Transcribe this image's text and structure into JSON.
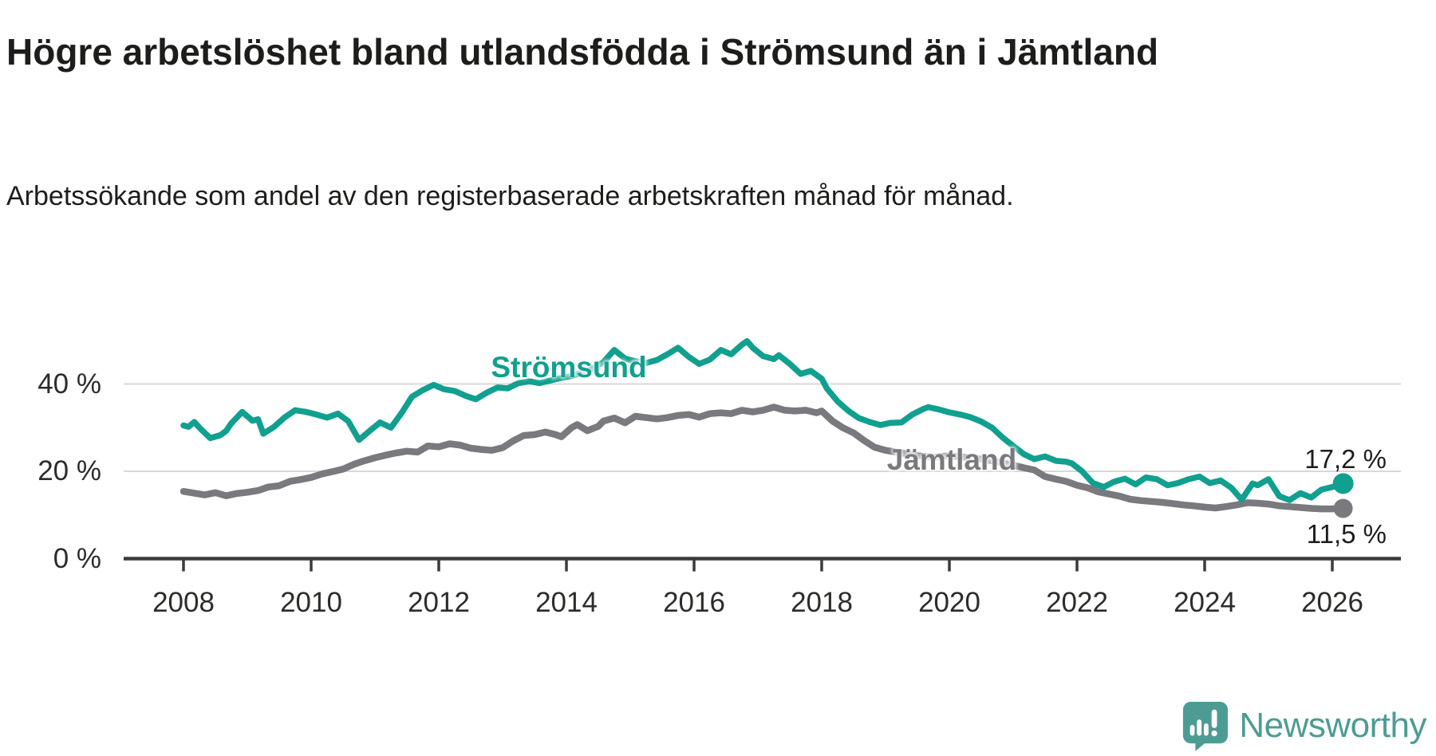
{
  "title": "Högre arbetslöshet bland utlandsfödda i Strömsund än i Jämtland",
  "subtitle": "Arbetssökande som andel av den registerbaserade arbetskraften månad för månad.",
  "branding": {
    "logo_text": "Newsworthy",
    "logo_color": "#4d9c93"
  },
  "colors": {
    "stromsund_line": "#11a08f",
    "jamtland_line": "#7a797e",
    "text": "#1d1d1b",
    "tick_text": "#2c2c2a",
    "gridline": "#d8d8d6",
    "axis": "#3b3b39"
  },
  "chart_data": {
    "type": "line",
    "title": "Högre arbetslöshet bland utlandsfödda i Strömsund än i Jämtland",
    "subtitle": "Arbetssökande som andel av den registerbaserade arbetskraften månad för månad.",
    "unit": "%",
    "xlabel": "",
    "ylabel": "",
    "x_range": [
      2008.0,
      2026.2
    ],
    "y_range": [
      0,
      52
    ],
    "grid": "horizontal",
    "legend_position": "inline-labels",
    "x_ticks": [
      2008,
      2010,
      2012,
      2014,
      2016,
      2018,
      2020,
      2022,
      2024,
      2026
    ],
    "y_ticks": [
      {
        "value": 0,
        "label": "0 %"
      },
      {
        "value": 20,
        "label": "20 %"
      },
      {
        "value": 40,
        "label": "40 %"
      }
    ],
    "series": [
      {
        "name": "Strömsund",
        "color": "#11a08f",
        "end_value": 17.2,
        "end_label": "17,2 %",
        "points": [
          [
            2008.0,
            30.5
          ],
          [
            2008.08,
            30.2
          ],
          [
            2008.17,
            31.3
          ],
          [
            2008.25,
            30.0
          ],
          [
            2008.42,
            27.6
          ],
          [
            2008.58,
            28.3
          ],
          [
            2008.67,
            29.3
          ],
          [
            2008.75,
            31.0
          ],
          [
            2008.92,
            33.6
          ],
          [
            2009.08,
            31.6
          ],
          [
            2009.17,
            31.9
          ],
          [
            2009.25,
            28.6
          ],
          [
            2009.42,
            30.2
          ],
          [
            2009.58,
            32.3
          ],
          [
            2009.75,
            34.0
          ],
          [
            2009.92,
            33.6
          ],
          [
            2010.08,
            33.0
          ],
          [
            2010.25,
            32.3
          ],
          [
            2010.42,
            33.2
          ],
          [
            2010.58,
            31.5
          ],
          [
            2010.75,
            27.2
          ],
          [
            2010.92,
            29.3
          ],
          [
            2011.08,
            31.2
          ],
          [
            2011.25,
            30.0
          ],
          [
            2011.42,
            33.4
          ],
          [
            2011.58,
            37.1
          ],
          [
            2011.75,
            38.6
          ],
          [
            2011.92,
            39.8
          ],
          [
            2012.08,
            38.8
          ],
          [
            2012.25,
            38.4
          ],
          [
            2012.42,
            37.3
          ],
          [
            2012.58,
            36.5
          ],
          [
            2012.75,
            38.0
          ],
          [
            2012.92,
            39.2
          ],
          [
            2013.08,
            39.0
          ],
          [
            2013.25,
            40.2
          ],
          [
            2013.42,
            40.6
          ],
          [
            2013.58,
            40.2
          ],
          [
            2013.75,
            40.8
          ],
          [
            2013.92,
            41.4
          ],
          [
            2014.08,
            41.8
          ],
          [
            2014.25,
            42.6
          ],
          [
            2014.42,
            43.6
          ],
          [
            2014.58,
            45.0
          ],
          [
            2014.75,
            47.8
          ],
          [
            2014.92,
            45.8
          ],
          [
            2015.08,
            45.2
          ],
          [
            2015.25,
            44.8
          ],
          [
            2015.42,
            45.5
          ],
          [
            2015.58,
            46.8
          ],
          [
            2015.75,
            48.3
          ],
          [
            2015.92,
            46.2
          ],
          [
            2016.08,
            44.6
          ],
          [
            2016.25,
            45.6
          ],
          [
            2016.42,
            47.8
          ],
          [
            2016.58,
            46.8
          ],
          [
            2016.75,
            49.0
          ],
          [
            2016.83,
            49.8
          ],
          [
            2016.92,
            48.3
          ],
          [
            2017.08,
            46.4
          ],
          [
            2017.25,
            45.7
          ],
          [
            2017.33,
            46.6
          ],
          [
            2017.5,
            44.6
          ],
          [
            2017.67,
            42.3
          ],
          [
            2017.83,
            43.0
          ],
          [
            2018.0,
            41.2
          ],
          [
            2018.08,
            39.0
          ],
          [
            2018.25,
            36.0
          ],
          [
            2018.42,
            33.8
          ],
          [
            2018.58,
            32.2
          ],
          [
            2018.75,
            31.3
          ],
          [
            2018.92,
            30.6
          ],
          [
            2019.08,
            31.1
          ],
          [
            2019.25,
            31.2
          ],
          [
            2019.42,
            33.0
          ],
          [
            2019.58,
            34.2
          ],
          [
            2019.67,
            34.7
          ],
          [
            2019.83,
            34.2
          ],
          [
            2020.0,
            33.5
          ],
          [
            2020.17,
            33.0
          ],
          [
            2020.33,
            32.4
          ],
          [
            2020.5,
            31.4
          ],
          [
            2020.67,
            30.0
          ],
          [
            2020.83,
            27.8
          ],
          [
            2021.0,
            25.8
          ],
          [
            2021.17,
            23.9
          ],
          [
            2021.33,
            22.8
          ],
          [
            2021.5,
            23.4
          ],
          [
            2021.67,
            22.4
          ],
          [
            2021.83,
            22.2
          ],
          [
            2021.92,
            21.8
          ],
          [
            2022.08,
            20.0
          ],
          [
            2022.25,
            17.3
          ],
          [
            2022.42,
            16.4
          ],
          [
            2022.58,
            17.6
          ],
          [
            2022.75,
            18.3
          ],
          [
            2022.92,
            17.0
          ],
          [
            2023.08,
            18.6
          ],
          [
            2023.25,
            18.2
          ],
          [
            2023.42,
            16.8
          ],
          [
            2023.58,
            17.3
          ],
          [
            2023.75,
            18.2
          ],
          [
            2023.92,
            18.8
          ],
          [
            2024.08,
            17.3
          ],
          [
            2024.25,
            17.9
          ],
          [
            2024.42,
            16.2
          ],
          [
            2024.58,
            13.5
          ],
          [
            2024.75,
            17.2
          ],
          [
            2024.83,
            16.8
          ],
          [
            2025.0,
            18.2
          ],
          [
            2025.17,
            14.3
          ],
          [
            2025.33,
            13.4
          ],
          [
            2025.5,
            15.0
          ],
          [
            2025.67,
            14.0
          ],
          [
            2025.83,
            15.8
          ],
          [
            2026.0,
            16.4
          ],
          [
            2026.17,
            17.2
          ]
        ]
      },
      {
        "name": "Jämtland",
        "color": "#7a797e",
        "end_value": 11.5,
        "end_label": "11,5 %",
        "points": [
          [
            2008.0,
            15.4
          ],
          [
            2008.17,
            15.0
          ],
          [
            2008.33,
            14.6
          ],
          [
            2008.5,
            15.1
          ],
          [
            2008.67,
            14.4
          ],
          [
            2008.83,
            14.9
          ],
          [
            2009.0,
            15.2
          ],
          [
            2009.17,
            15.6
          ],
          [
            2009.33,
            16.4
          ],
          [
            2009.5,
            16.7
          ],
          [
            2009.67,
            17.7
          ],
          [
            2009.83,
            18.1
          ],
          [
            2010.0,
            18.6
          ],
          [
            2010.17,
            19.4
          ],
          [
            2010.33,
            19.9
          ],
          [
            2010.5,
            20.5
          ],
          [
            2010.67,
            21.6
          ],
          [
            2010.83,
            22.4
          ],
          [
            2011.0,
            23.1
          ],
          [
            2011.17,
            23.7
          ],
          [
            2011.33,
            24.2
          ],
          [
            2011.5,
            24.6
          ],
          [
            2011.67,
            24.4
          ],
          [
            2011.83,
            25.8
          ],
          [
            2012.0,
            25.6
          ],
          [
            2012.17,
            26.3
          ],
          [
            2012.33,
            26.0
          ],
          [
            2012.5,
            25.3
          ],
          [
            2012.67,
            25.0
          ],
          [
            2012.83,
            24.8
          ],
          [
            2013.0,
            25.4
          ],
          [
            2013.17,
            27.0
          ],
          [
            2013.33,
            28.2
          ],
          [
            2013.5,
            28.4
          ],
          [
            2013.67,
            29.0
          ],
          [
            2013.83,
            28.4
          ],
          [
            2013.92,
            27.9
          ],
          [
            2014.08,
            30.0
          ],
          [
            2014.17,
            30.7
          ],
          [
            2014.33,
            29.3
          ],
          [
            2014.5,
            30.3
          ],
          [
            2014.58,
            31.5
          ],
          [
            2014.75,
            32.2
          ],
          [
            2014.92,
            31.1
          ],
          [
            2015.08,
            32.6
          ],
          [
            2015.25,
            32.3
          ],
          [
            2015.42,
            32.0
          ],
          [
            2015.58,
            32.3
          ],
          [
            2015.75,
            32.8
          ],
          [
            2015.92,
            33.0
          ],
          [
            2016.08,
            32.4
          ],
          [
            2016.25,
            33.2
          ],
          [
            2016.42,
            33.4
          ],
          [
            2016.58,
            33.2
          ],
          [
            2016.75,
            34.0
          ],
          [
            2016.92,
            33.6
          ],
          [
            2017.08,
            34.0
          ],
          [
            2017.25,
            34.7
          ],
          [
            2017.42,
            34.0
          ],
          [
            2017.58,
            33.8
          ],
          [
            2017.75,
            34.0
          ],
          [
            2017.92,
            33.4
          ],
          [
            2018.0,
            33.8
          ],
          [
            2018.17,
            31.5
          ],
          [
            2018.33,
            30.0
          ],
          [
            2018.5,
            28.8
          ],
          [
            2018.67,
            27.0
          ],
          [
            2018.83,
            25.5
          ],
          [
            2019.0,
            24.8
          ],
          [
            2019.25,
            24.2
          ],
          [
            2019.5,
            23.6
          ],
          [
            2019.75,
            23.2
          ],
          [
            2020.0,
            23.6
          ],
          [
            2020.25,
            23.2
          ],
          [
            2020.5,
            22.8
          ],
          [
            2020.75,
            22.2
          ],
          [
            2021.0,
            21.4
          ],
          [
            2021.17,
            20.8
          ],
          [
            2021.33,
            20.3
          ],
          [
            2021.5,
            18.8
          ],
          [
            2021.67,
            18.2
          ],
          [
            2021.83,
            17.7
          ],
          [
            2022.0,
            16.8
          ],
          [
            2022.17,
            16.2
          ],
          [
            2022.33,
            15.3
          ],
          [
            2022.5,
            14.8
          ],
          [
            2022.67,
            14.3
          ],
          [
            2022.83,
            13.6
          ],
          [
            2023.0,
            13.3
          ],
          [
            2023.17,
            13.1
          ],
          [
            2023.33,
            12.9
          ],
          [
            2023.5,
            12.6
          ],
          [
            2023.67,
            12.3
          ],
          [
            2023.83,
            12.1
          ],
          [
            2024.0,
            11.8
          ],
          [
            2024.17,
            11.6
          ],
          [
            2024.33,
            11.9
          ],
          [
            2024.5,
            12.3
          ],
          [
            2024.67,
            12.8
          ],
          [
            2024.83,
            12.7
          ],
          [
            2025.0,
            12.5
          ],
          [
            2025.17,
            12.1
          ],
          [
            2025.33,
            11.9
          ],
          [
            2025.5,
            11.7
          ],
          [
            2025.67,
            11.5
          ],
          [
            2025.83,
            11.4
          ],
          [
            2026.0,
            11.4
          ],
          [
            2026.17,
            11.5
          ]
        ]
      }
    ]
  }
}
